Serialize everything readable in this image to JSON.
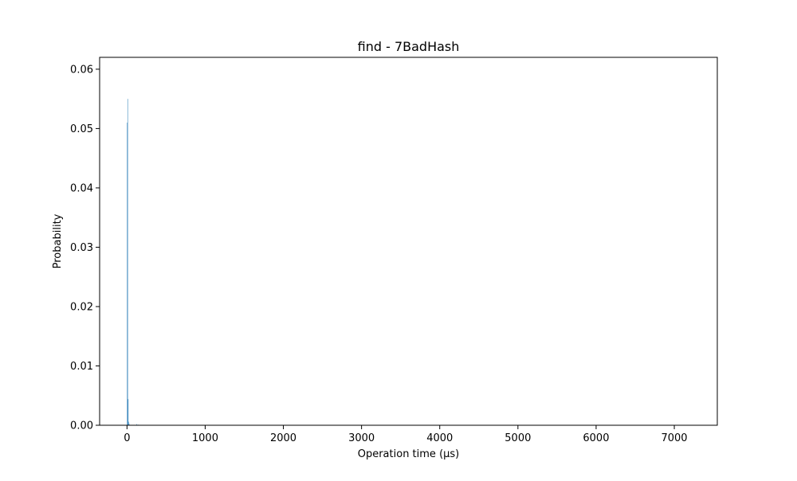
{
  "chart_data": {
    "type": "bar",
    "title": "find -  7BadHash",
    "xlabel": "Operation time (µs)",
    "ylabel": "Probability",
    "xlim": [
      -350,
      7550
    ],
    "ylim": [
      0,
      0.062
    ],
    "xticks": [
      0,
      1000,
      2000,
      3000,
      4000,
      5000,
      6000,
      7000
    ],
    "xtick_labels": [
      "0",
      "1000",
      "2000",
      "3000",
      "4000",
      "5000",
      "6000",
      "7000"
    ],
    "yticks": [
      0.0,
      0.01,
      0.02,
      0.03,
      0.04,
      0.05,
      0.06
    ],
    "ytick_labels": [
      "0.00",
      "0.01",
      "0.02",
      "0.03",
      "0.04",
      "0.05",
      "0.06"
    ],
    "grid": false,
    "bar_color": "#1f77b4",
    "bins": [
      {
        "x0": 0,
        "x1": 6,
        "value": 0.051
      },
      {
        "x0": 6,
        "x1": 12,
        "value": 0.055
      },
      {
        "x0": 12,
        "x1": 18,
        "value": 0.0044
      },
      {
        "x0": 18,
        "x1": 24,
        "value": 0.0006
      },
      {
        "x0": 24,
        "x1": 30,
        "value": 0.0003
      },
      {
        "x0": 120,
        "x1": 126,
        "value": 0.0002
      },
      {
        "x0": 138,
        "x1": 144,
        "value": 0.0001
      }
    ]
  }
}
